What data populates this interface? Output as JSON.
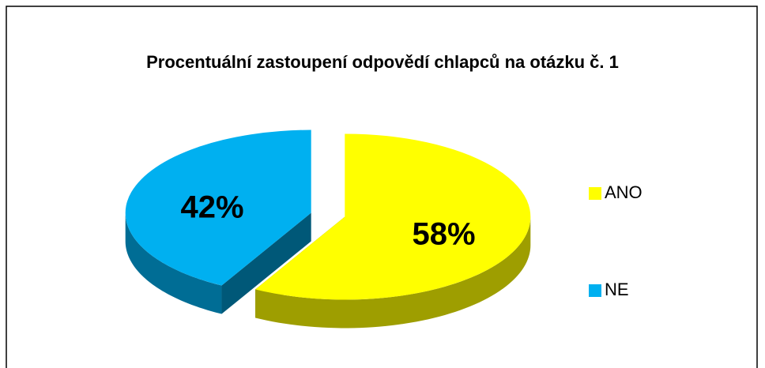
{
  "chart_data": {
    "type": "pie",
    "title": "Procentuální zastoupení odpovědí chlapců na otázku č. 1",
    "categories": [
      "ANO",
      "NE"
    ],
    "values": [
      58,
      42
    ],
    "value_labels": [
      "58%",
      "42%"
    ],
    "colors": [
      "#ffff00",
      "#00b0f0"
    ],
    "legend": "right",
    "three_d": true
  }
}
